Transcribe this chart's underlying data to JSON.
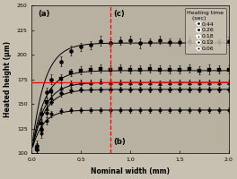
{
  "title": "",
  "xlabel": "Nominal width (mm)",
  "ylabel": "Heated height (μm)",
  "xlim": [
    0.0,
    2.0
  ],
  "ylim": [
    100,
    250
  ],
  "yticks": [
    100,
    125,
    150,
    175,
    200,
    225,
    250
  ],
  "xticks": [
    0.0,
    0.5,
    1.0,
    1.5,
    2.0
  ],
  "vline_x": 0.8,
  "hline_y": 172,
  "label_a": "(a)",
  "label_b": "(b)",
  "label_c": "(c)",
  "legend_title": "Heating time\n   (sec)",
  "series": [
    {
      "label": "0.44",
      "marker": "o",
      "markersize": 3.0,
      "plateau": 212,
      "y0": 105,
      "tau": 0.13,
      "x_data": [
        0.05,
        0.1,
        0.15,
        0.2,
        0.3,
        0.4,
        0.5,
        0.6,
        0.7,
        0.8,
        0.9,
        1.0,
        1.1,
        1.2,
        1.3,
        1.4,
        1.5,
        1.6,
        1.7,
        1.8,
        1.9,
        2.0
      ],
      "y_data": [
        108,
        140,
        162,
        175,
        193,
        204,
        208,
        210,
        214,
        212,
        214,
        215,
        212,
        213,
        215,
        213,
        213,
        214,
        213,
        215,
        213,
        214
      ],
      "y_err": [
        5,
        6,
        5,
        5,
        5,
        5,
        4,
        4,
        5,
        4,
        4,
        4,
        5,
        4,
        4,
        4,
        4,
        4,
        4,
        4,
        4,
        4
      ]
    },
    {
      "label": "0.26",
      "marker": "s",
      "markersize": 3.0,
      "plateau": 184,
      "y0": 103,
      "tau": 0.13,
      "x_data": [
        0.05,
        0.1,
        0.15,
        0.2,
        0.3,
        0.4,
        0.5,
        0.6,
        0.7,
        0.8,
        0.9,
        1.0,
        1.1,
        1.2,
        1.3,
        1.4,
        1.5,
        1.6,
        1.7,
        1.8,
        1.9,
        2.0
      ],
      "y_data": [
        105,
        130,
        152,
        163,
        176,
        182,
        184,
        185,
        186,
        185,
        186,
        185,
        185,
        186,
        185,
        185,
        185,
        186,
        184,
        185,
        185,
        185
      ],
      "y_err": [
        5,
        5,
        5,
        4,
        4,
        4,
        4,
        4,
        4,
        4,
        4,
        4,
        4,
        4,
        4,
        4,
        4,
        4,
        4,
        5,
        4,
        4
      ]
    },
    {
      "label": "0.18",
      "marker": "^",
      "markersize": 3.0,
      "plateau": 172,
      "y0": 103,
      "tau": 0.13,
      "x_data": [
        0.05,
        0.1,
        0.15,
        0.2,
        0.3,
        0.4,
        0.5,
        0.6,
        0.7,
        0.8,
        0.9,
        1.0,
        1.1,
        1.2,
        1.3,
        1.4,
        1.5,
        1.6,
        1.7,
        1.8,
        1.9,
        2.0
      ],
      "y_data": [
        105,
        127,
        146,
        157,
        167,
        171,
        172,
        172,
        173,
        172,
        172,
        172,
        172,
        172,
        171,
        172,
        172,
        172,
        172,
        172,
        172,
        172
      ],
      "y_err": [
        5,
        5,
        4,
        4,
        4,
        3,
        3,
        3,
        3,
        3,
        3,
        3,
        3,
        3,
        3,
        3,
        3,
        3,
        3,
        3,
        3,
        3
      ]
    },
    {
      "label": "0.12",
      "marker": "D",
      "markersize": 2.5,
      "plateau": 165,
      "y0": 103,
      "tau": 0.13,
      "x_data": [
        0.05,
        0.1,
        0.15,
        0.2,
        0.3,
        0.4,
        0.5,
        0.6,
        0.7,
        0.8,
        0.9,
        1.0,
        1.1,
        1.2,
        1.3,
        1.4,
        1.5,
        1.6,
        1.7,
        1.8,
        1.9,
        2.0
      ],
      "y_data": [
        104,
        124,
        141,
        152,
        161,
        164,
        165,
        165,
        165,
        165,
        165,
        165,
        165,
        165,
        165,
        165,
        165,
        165,
        165,
        165,
        165,
        165
      ],
      "y_err": [
        4,
        4,
        4,
        3,
        3,
        3,
        3,
        3,
        3,
        3,
        3,
        3,
        3,
        3,
        3,
        3,
        3,
        3,
        3,
        3,
        3,
        3
      ]
    },
    {
      "label": "0.06",
      "marker": "o",
      "markersize": 2.5,
      "plateau": 144,
      "y0": 103,
      "tau": 0.11,
      "x_data": [
        0.05,
        0.1,
        0.15,
        0.2,
        0.3,
        0.4,
        0.5,
        0.6,
        0.7,
        0.8,
        0.9,
        1.0,
        1.1,
        1.2,
        1.3,
        1.4,
        1.5,
        1.6,
        1.7,
        1.8,
        1.9,
        2.0
      ],
      "y_data": [
        104,
        120,
        133,
        140,
        143,
        144,
        144,
        144,
        144,
        144,
        144,
        144,
        144,
        144,
        144,
        144,
        144,
        144,
        144,
        144,
        144,
        144
      ],
      "y_err": [
        4,
        4,
        4,
        3,
        3,
        3,
        3,
        3,
        3,
        3,
        3,
        3,
        3,
        3,
        3,
        3,
        3,
        3,
        3,
        3,
        3,
        3
      ]
    }
  ],
  "bg_color": "#c8c0b0",
  "plot_bg_color": "#b8b0a0"
}
